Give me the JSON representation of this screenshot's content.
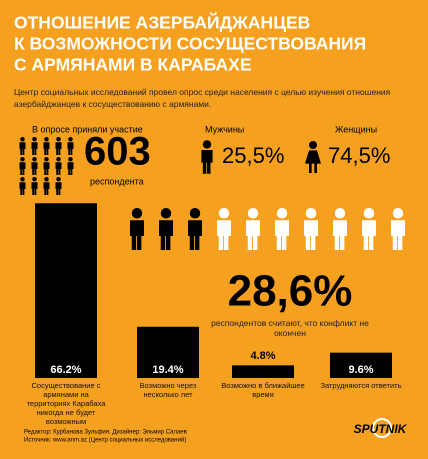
{
  "header": {
    "title": [
      "ОТНОШЕНИЕ АЗЕРБАЙДЖАНЦЕВ",
      "К ВОЗМОЖНОСТИ СОСУЩЕСТВОВАНИЯ",
      "С АРМЯНАМИ В КАРАБАХЕ"
    ],
    "intro": "Центр социальных исследований провел опрос среди населения с целью изучения отношения азербайджанцев к сосуществованию с армянами."
  },
  "stats": {
    "participants_label": "В опросе приняли участие",
    "participants": "603",
    "participants_unit": "респондента",
    "men_label": "Мужчины",
    "men": "25,5%",
    "women_label": "Женщины",
    "women": "74,5%",
    "conflict": "28,6%",
    "conflict_text": "респондентов считают, что конфликт не окончен"
  },
  "chart_data": {
    "type": "bar",
    "categories": [
      "Сосуществование с армянами на территориях Карабаха никогда не будет возможным",
      "Возможно через несколько лет",
      "Возможно в ближайшее время",
      "Затрудняются ответить"
    ],
    "values": [
      66.2,
      19.4,
      4.8,
      9.6
    ],
    "value_labels": [
      "66.2%",
      "19.4%",
      "4.8%",
      "9.6%"
    ],
    "color": "#000000"
  },
  "footer": {
    "credits": "Редактор: Курбанова Зульфия. Дизайнер: Эльмир Салаев",
    "source": "Источник: www.anm.az (Центр социальных исследований)",
    "logo": "SPUTNIK"
  }
}
